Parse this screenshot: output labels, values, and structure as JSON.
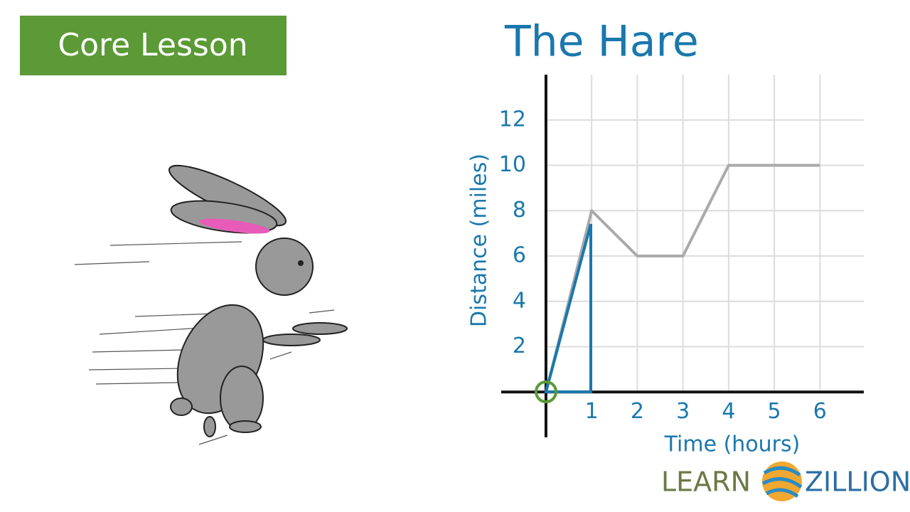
{
  "badge": "Core Lesson",
  "logo": {
    "left": "LEARN",
    "right": "ZILLION"
  },
  "chart_data": {
    "type": "line",
    "title": "The Hare",
    "x_label": "Time (hours)",
    "y_label": "Distance (miles)",
    "x": [
      0,
      1,
      2,
      3,
      4,
      5,
      6
    ],
    "series": [
      {
        "color": "#aaaaaa",
        "values": [
          0,
          8,
          6,
          6,
          10,
          10,
          10
        ]
      }
    ],
    "xlim": [
      -0.98,
      6.96
    ],
    "ylim": [
      -2,
      14
    ],
    "xticks": [
      1,
      2,
      3,
      4,
      5,
      6
    ],
    "yticks": [
      2,
      4,
      6,
      8,
      10,
      12
    ],
    "grid": true
  }
}
